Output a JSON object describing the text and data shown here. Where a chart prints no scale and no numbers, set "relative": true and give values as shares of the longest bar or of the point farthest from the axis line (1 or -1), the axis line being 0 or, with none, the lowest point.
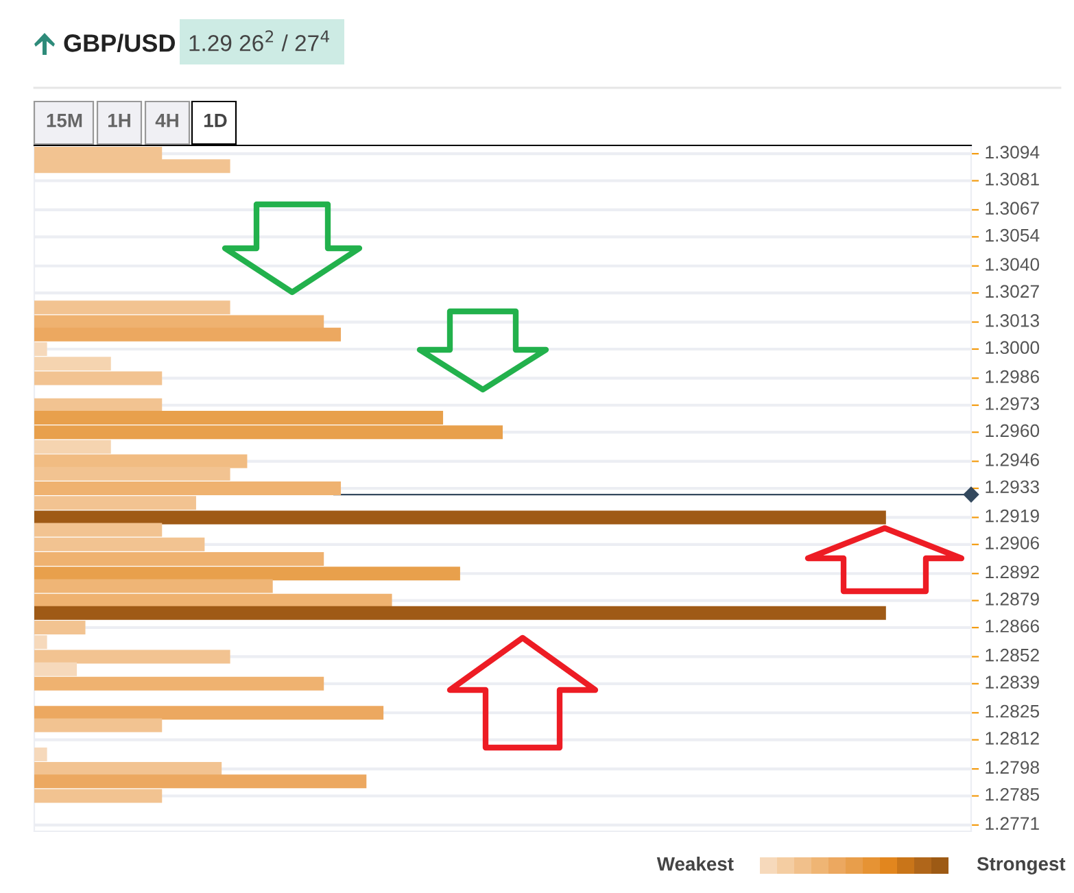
{
  "chart_data": {
    "type": "bar",
    "orientation": "horizontal",
    "relative": true,
    "x": [
      1.3094,
      1.3088,
      1.302,
      1.3013,
      1.3007,
      1.3,
      1.2993,
      1.2986,
      1.2973,
      1.2967,
      1.296,
      1.2953,
      1.2946,
      1.294,
      1.2933,
      1.2926,
      1.2919,
      1.2913,
      1.2906,
      1.2899,
      1.2892,
      1.2886,
      1.2879,
      1.2873,
      1.2866,
      1.2859,
      1.2852,
      1.2846,
      1.2839,
      1.2825,
      1.2819,
      1.2805,
      1.2798,
      1.2792,
      1.2785
    ],
    "values": [
      0.15,
      0.23,
      0.23,
      0.34,
      0.36,
      0.015,
      0.09,
      0.15,
      0.15,
      0.48,
      0.55,
      0.09,
      0.25,
      0.23,
      0.36,
      0.19,
      1,
      0.15,
      0.2,
      0.34,
      0.5,
      0.28,
      0.42,
      1,
      0.06,
      0.015,
      0.23,
      0.05,
      0.34,
      0.41,
      0.15,
      0.015,
      0.22,
      0.39,
      0.15
    ],
    "colors": [
      "#f2c391",
      "#f2c391",
      "#f2c391",
      "#efb270",
      "#eca860",
      "#f6d9bb",
      "#f5d4b0",
      "#f2c391",
      "#f2c391",
      "#e8a04c",
      "#e8a04c",
      "#f5d4b0",
      "#f1bc82",
      "#f2c391",
      "#efb270",
      "#f2c391",
      "#9f5a16",
      "#f2c391",
      "#f2c391",
      "#efb270",
      "#e8a04c",
      "#efb576",
      "#efb270",
      "#9f5a16",
      "#f2c391",
      "#f6d9bb",
      "#f2c391",
      "#f6d9bb",
      "#efb270",
      "#eca860",
      "#f2c391",
      "#f6d9bb",
      "#f2c391",
      "#eca860",
      "#f2c391"
    ],
    "ylim": [
      1.2768,
      1.3098
    ],
    "yticks": [
      1.3094,
      1.3081,
      1.3067,
      1.3054,
      {
        "value": 1.304,
        "label": "1.3040"
      },
      1.3027,
      1.3013,
      {
        "value": 1.3,
        "label": "1.3000"
      },
      1.2986,
      1.2973,
      {
        "value": 1.296,
        "label": "1.2960"
      },
      1.2946,
      1.2933,
      1.2919,
      1.2906,
      1.2892,
      1.2879,
      1.2866,
      1.2852,
      1.2839,
      1.2825,
      1.2812,
      1.2798,
      1.2785,
      1.2771
    ],
    "ref_lines": [
      {
        "axis": "y",
        "value": 1.293,
        "label": null,
        "color": "#34495e"
      }
    ],
    "grid": "y",
    "annotations": [
      "GBP/USD",
      "1.29 26$^{2}$ / 27$^{4}$",
      "15M",
      "1H",
      "4H",
      "1D",
      "Weakest",
      "Strongest"
    ]
  }
}
